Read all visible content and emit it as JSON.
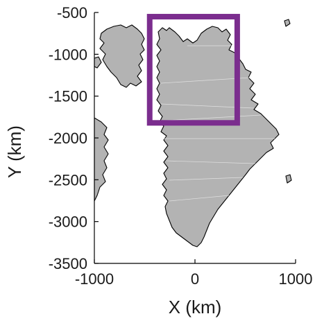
{
  "map": {
    "xlabel": "X (km)",
    "ylabel": "Y (km)",
    "x_range": [
      -1000,
      1000
    ],
    "y_range": [
      -3500,
      -500
    ],
    "x_ticks": [
      {
        "value": -1000,
        "label": "-1000"
      },
      {
        "value": 0,
        "label": "0"
      },
      {
        "value": 1000,
        "label": "1000"
      }
    ],
    "y_ticks": [
      {
        "value": -500,
        "label": "-500"
      },
      {
        "value": -1000,
        "label": "-1000"
      },
      {
        "value": -1500,
        "label": "-1500"
      },
      {
        "value": -2000,
        "label": "-2000"
      },
      {
        "value": -2500,
        "label": "-2500"
      },
      {
        "value": -3000,
        "label": "-3000"
      },
      {
        "value": -3500,
        "label": "-3500"
      }
    ],
    "region_box": {
      "x_min": -450,
      "x_max": 420,
      "y_min": -1820,
      "y_max": -550,
      "color": "#7b2d8e"
    },
    "land_fill": "#b3b3b3",
    "coast_color": "#000000",
    "axis_color": "#000000"
  }
}
